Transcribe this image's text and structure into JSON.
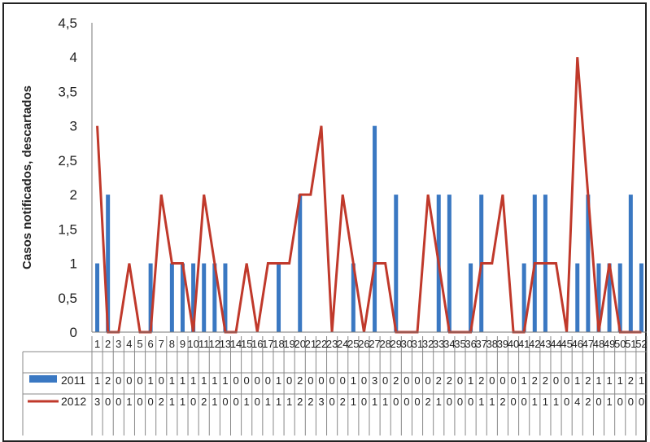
{
  "chart_data": {
    "type": "bar",
    "ylabel": "Casos notificados, descartados",
    "ylim": [
      0,
      4.5
    ],
    "y_ticks": [
      "0",
      "0,5",
      "1",
      "1,5",
      "2",
      "2,5",
      "3",
      "3,5",
      "4",
      "4,5"
    ],
    "categories": [
      "1",
      "2",
      "3",
      "4",
      "5",
      "6",
      "7",
      "8",
      "9",
      "10",
      "11",
      "12",
      "13",
      "14",
      "15",
      "16",
      "17",
      "18",
      "19",
      "20",
      "21",
      "22",
      "23",
      "24",
      "25",
      "26",
      "27",
      "28",
      "29",
      "30",
      "31",
      "32",
      "33",
      "34",
      "35",
      "36",
      "37",
      "38",
      "39",
      "40",
      "41",
      "42",
      "43",
      "44",
      "45",
      "46",
      "47",
      "48",
      "49",
      "50",
      "51",
      "52"
    ],
    "series": [
      {
        "name": "2011",
        "type": "bar",
        "color": "#3a78c2",
        "values": [
          1,
          2,
          0,
          0,
          0,
          1,
          0,
          1,
          1,
          1,
          1,
          1,
          1,
          0,
          0,
          0,
          0,
          1,
          0,
          2,
          0,
          0,
          0,
          0,
          1,
          0,
          3,
          0,
          2,
          0,
          0,
          0,
          2,
          2,
          0,
          1,
          2,
          0,
          0,
          0,
          1,
          2,
          2,
          0,
          0,
          1,
          2,
          1,
          1,
          1,
          2,
          1
        ]
      },
      {
        "name": "2012",
        "type": "line",
        "color": "#c0392b",
        "values": [
          3,
          0,
          0,
          1,
          0,
          0,
          2,
          1,
          1,
          0,
          2,
          1,
          0,
          0,
          1,
          0,
          1,
          1,
          1,
          2,
          2,
          3,
          0,
          2,
          1,
          0,
          1,
          1,
          0,
          0,
          0,
          2,
          1,
          0,
          0,
          0,
          1,
          1,
          2,
          0,
          0,
          1,
          1,
          1,
          0,
          4,
          2,
          0,
          1,
          0,
          0,
          0
        ]
      }
    ],
    "grid": false,
    "legend": "data table"
  }
}
